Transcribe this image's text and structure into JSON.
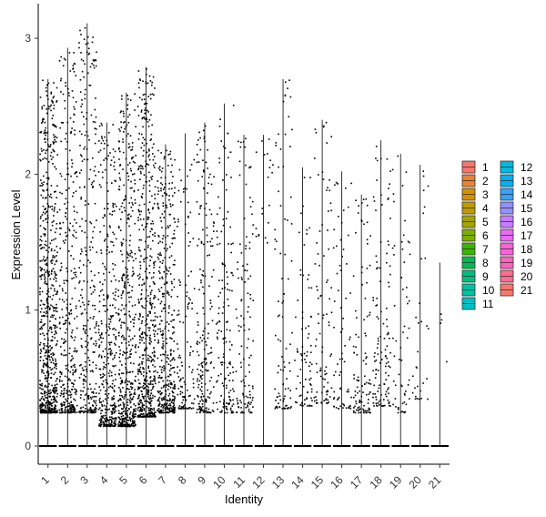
{
  "chart_data": {
    "type": "violin-scatter",
    "xlabel": "Identity",
    "ylabel": "Expression Level",
    "ylim": [
      -0.15,
      3.25
    ],
    "yticks": [
      0,
      1,
      2,
      3
    ],
    "grid": false,
    "legend_position": "right",
    "categories": [
      "1",
      "2",
      "3",
      "4",
      "5",
      "6",
      "7",
      "8",
      "9",
      "10",
      "11",
      "12",
      "13",
      "14",
      "15",
      "16",
      "17",
      "18",
      "19",
      "20",
      "21"
    ],
    "max_values": [
      2.7,
      2.93,
      3.11,
      2.38,
      2.6,
      2.79,
      2.22,
      2.3,
      2.38,
      2.52,
      2.29,
      2.29,
      2.7,
      2.05,
      2.4,
      2.02,
      1.85,
      2.25,
      2.15,
      2.07,
      1.35
    ],
    "point_counts": [
      700,
      360,
      300,
      380,
      500,
      600,
      420,
      120,
      200,
      150,
      120,
      20,
      90,
      80,
      90,
      70,
      110,
      120,
      60,
      30,
      4
    ],
    "point_range_low": [
      0.25,
      0.25,
      0.25,
      0.15,
      0.15,
      0.22,
      0.25,
      0.28,
      0.25,
      0.25,
      0.25,
      1.5,
      0.28,
      0.3,
      0.32,
      0.28,
      0.25,
      0.3,
      0.25,
      0.35,
      0.45
    ],
    "colors": [
      "#F8766D",
      "#EA8331",
      "#D89000",
      "#C09B00",
      "#A3A500",
      "#7CAE00",
      "#39B600",
      "#00BB4E",
      "#00BF7D",
      "#00C1A3",
      "#00BFC4",
      "#00BAE0",
      "#00B0F6",
      "#35A2FF",
      "#9590FF",
      "#C77CFF",
      "#E76BF3",
      "#FA62DB",
      "#FF62BC",
      "#FF6C91",
      "#F8766D"
    ],
    "legend_entries": [
      "1",
      "2",
      "3",
      "4",
      "5",
      "6",
      "7",
      "8",
      "9",
      "10",
      "11",
      "12",
      "13",
      "14",
      "15",
      "16",
      "17",
      "18",
      "19",
      "20",
      "21"
    ]
  }
}
